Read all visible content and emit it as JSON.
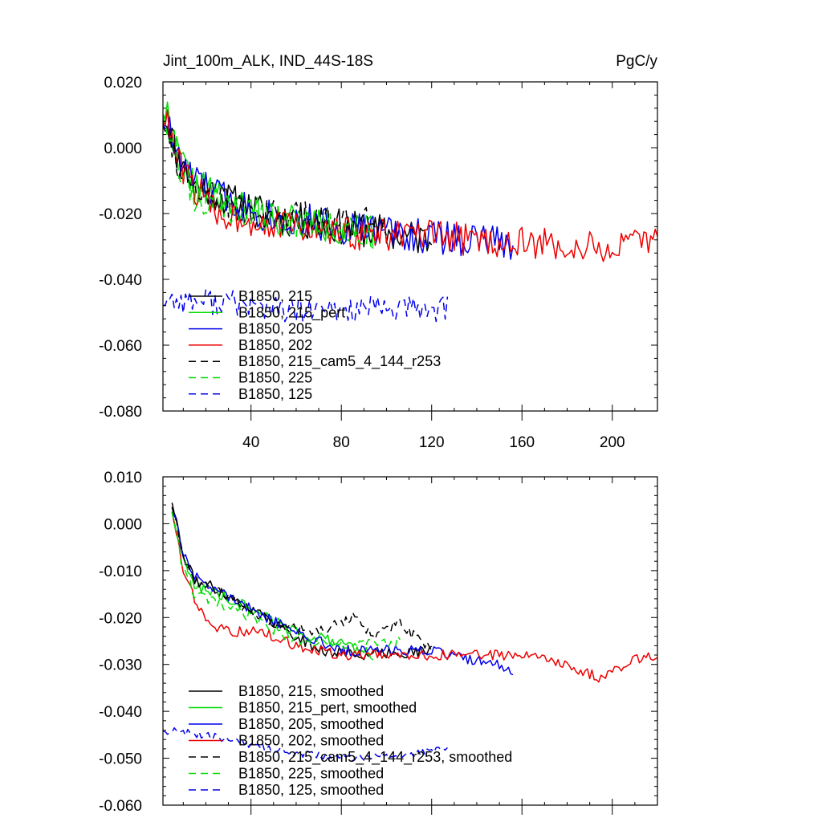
{
  "units_label": "PgC/y",
  "colors": {
    "black": "#000000",
    "green": "#00dd00",
    "blue": "#0000ee",
    "red": "#ee0000"
  },
  "chart_data": [
    {
      "type": "line",
      "title": "Jint_100m_ALK, IND_44S-18S",
      "units": "PgC/y",
      "xlim": [
        1,
        220
      ],
      "ylim": [
        -0.08,
        0.02
      ],
      "xticks": [
        40,
        80,
        120,
        160,
        200
      ],
      "xtick_labels": [
        "40",
        "80",
        "120",
        "160",
        "200"
      ],
      "yticks": [
        0.02,
        0.0,
        -0.02,
        -0.04,
        -0.06,
        -0.08
      ],
      "ytick_labels": [
        "0.020",
        "0.000",
        "-0.020",
        "-0.040",
        "-0.060",
        "-0.080"
      ],
      "show_xtick_labels": true,
      "legend": {
        "placement": "bottom-left"
      },
      "series": [
        {
          "name": "B1850, 215",
          "color": "black",
          "dash": false,
          "len": 120,
          "keys": [
            [
              1,
              0.011
            ],
            [
              4,
              0.006
            ],
            [
              8,
              -0.004
            ],
            [
              15,
              -0.011
            ],
            [
              30,
              -0.016
            ],
            [
              50,
              -0.021
            ],
            [
              80,
              -0.024
            ],
            [
              120,
              -0.028
            ]
          ],
          "noise": 0.0055,
          "seed": 11
        },
        {
          "name": "B1850, 215_pert",
          "color": "green",
          "dash": false,
          "len": 94,
          "keys": [
            [
              1,
              0.013
            ],
            [
              4,
              0.008
            ],
            [
              8,
              -0.003
            ],
            [
              15,
              -0.011
            ],
            [
              30,
              -0.017
            ],
            [
              50,
              -0.021
            ],
            [
              94,
              -0.026
            ]
          ],
          "noise": 0.0055,
          "seed": 22
        },
        {
          "name": "B1850, 205",
          "color": "blue",
          "dash": false,
          "len": 156,
          "keys": [
            [
              1,
              0.01
            ],
            [
              4,
              0.005
            ],
            [
              8,
              -0.004
            ],
            [
              15,
              -0.01
            ],
            [
              30,
              -0.016
            ],
            [
              50,
              -0.021
            ],
            [
              80,
              -0.024
            ],
            [
              120,
              -0.027
            ],
            [
              156,
              -0.029
            ]
          ],
          "noise": 0.0055,
          "seed": 33
        },
        {
          "name": "B1850, 202",
          "color": "red",
          "dash": false,
          "len": 220,
          "keys": [
            [
              1,
              0.011
            ],
            [
              4,
              0.005
            ],
            [
              8,
              -0.005
            ],
            [
              15,
              -0.012
            ],
            [
              25,
              -0.02
            ],
            [
              50,
              -0.023
            ],
            [
              80,
              -0.026
            ],
            [
              120,
              -0.027
            ],
            [
              160,
              -0.029
            ],
            [
              200,
              -0.031
            ],
            [
              220,
              -0.028
            ]
          ],
          "noise": 0.005,
          "seed": 44
        },
        {
          "name": "B1850, 215_cam5_4_144_r253",
          "color": "black",
          "dash": true,
          "len": 100,
          "keys": [
            [
              1,
              0.009
            ],
            [
              4,
              0.004
            ],
            [
              8,
              -0.005
            ],
            [
              15,
              -0.011
            ],
            [
              30,
              -0.017
            ],
            [
              50,
              -0.021
            ],
            [
              80,
              -0.022
            ],
            [
              100,
              -0.022
            ]
          ],
          "noise": 0.005,
          "seed": 55
        },
        {
          "name": "B1850, 225",
          "color": "green",
          "dash": true,
          "len": 95,
          "keys": [
            [
              1,
              0.012
            ],
            [
              4,
              0.006
            ],
            [
              8,
              -0.005
            ],
            [
              15,
              -0.015
            ],
            [
              30,
              -0.019
            ],
            [
              60,
              -0.023
            ],
            [
              95,
              -0.027
            ]
          ],
          "noise": 0.005,
          "seed": 66
        },
        {
          "name": "B1850, 125",
          "color": "blue",
          "dash": true,
          "len": 127,
          "keys": [
            [
              1,
              -0.046
            ],
            [
              30,
              -0.047
            ],
            [
              60,
              -0.05
            ],
            [
              90,
              -0.049
            ],
            [
              127,
              -0.049
            ]
          ],
          "noise": 0.004,
          "seed": 77
        }
      ]
    },
    {
      "type": "line",
      "title": "",
      "units": "",
      "xlim": [
        1,
        220
      ],
      "ylim": [
        -0.06,
        0.01
      ],
      "xticks": [
        40,
        80,
        120,
        160,
        200
      ],
      "xtick_labels": [],
      "yticks": [
        0.01,
        0.0,
        -0.01,
        -0.02,
        -0.03,
        -0.04,
        -0.05,
        -0.06
      ],
      "ytick_labels": [
        "0.010",
        "0.000",
        "-0.010",
        "-0.020",
        "-0.030",
        "-0.040",
        "-0.050",
        "-0.060"
      ],
      "show_xtick_labels": false,
      "legend": {
        "placement": "bottom-left"
      },
      "series": [
        {
          "name": "B1850, 215, smoothed",
          "color": "black",
          "dash": false,
          "len": 120,
          "keys": [
            [
              5,
              0.005
            ],
            [
              10,
              -0.007
            ],
            [
              15,
              -0.012
            ],
            [
              25,
              -0.014
            ],
            [
              40,
              -0.018
            ],
            [
              50,
              -0.021
            ],
            [
              70,
              -0.027
            ],
            [
              90,
              -0.028
            ],
            [
              120,
              -0.027
            ]
          ],
          "noise": 0.0012,
          "seed": 111
        },
        {
          "name": "B1850, 215_pert, smoothed",
          "color": "green",
          "dash": false,
          "len": 94,
          "keys": [
            [
              5,
              0.003
            ],
            [
              10,
              -0.008
            ],
            [
              15,
              -0.013
            ],
            [
              25,
              -0.015
            ],
            [
              40,
              -0.018
            ],
            [
              55,
              -0.022
            ],
            [
              75,
              -0.025
            ],
            [
              94,
              -0.028
            ]
          ],
          "noise": 0.0012,
          "seed": 122
        },
        {
          "name": "B1850, 205, smoothed",
          "color": "blue",
          "dash": false,
          "len": 156,
          "keys": [
            [
              5,
              0.004
            ],
            [
              10,
              -0.006
            ],
            [
              15,
              -0.011
            ],
            [
              25,
              -0.014
            ],
            [
              40,
              -0.018
            ],
            [
              55,
              -0.022
            ],
            [
              80,
              -0.027
            ],
            [
              120,
              -0.027
            ],
            [
              156,
              -0.031
            ]
          ],
          "noise": 0.0012,
          "seed": 133
        },
        {
          "name": "B1850, 202, smoothed",
          "color": "red",
          "dash": false,
          "len": 220,
          "keys": [
            [
              5,
              0.003
            ],
            [
              10,
              -0.01
            ],
            [
              15,
              -0.016
            ],
            [
              20,
              -0.021
            ],
            [
              30,
              -0.023
            ],
            [
              45,
              -0.023
            ],
            [
              60,
              -0.026
            ],
            [
              80,
              -0.028
            ],
            [
              120,
              -0.028
            ],
            [
              160,
              -0.028
            ],
            [
              180,
              -0.03
            ],
            [
              195,
              -0.033
            ],
            [
              210,
              -0.029
            ],
            [
              220,
              -0.028
            ]
          ],
          "noise": 0.0011,
          "seed": 144
        },
        {
          "name": "B1850, 215_cam5_4_144_r253, smoothed",
          "color": "black",
          "dash": true,
          "len": 120,
          "keys": [
            [
              5,
              0.004
            ],
            [
              10,
              -0.007
            ],
            [
              15,
              -0.012
            ],
            [
              25,
              -0.014
            ],
            [
              40,
              -0.019
            ],
            [
              55,
              -0.022
            ],
            [
              70,
              -0.023
            ],
            [
              85,
              -0.02
            ],
            [
              95,
              -0.024
            ],
            [
              105,
              -0.021
            ],
            [
              120,
              -0.027
            ]
          ],
          "noise": 0.0011,
          "seed": 155
        },
        {
          "name": "B1850, 225, smoothed",
          "color": "green",
          "dash": true,
          "len": 106,
          "keys": [
            [
              5,
              0.003
            ],
            [
              10,
              -0.01
            ],
            [
              15,
              -0.015
            ],
            [
              25,
              -0.017
            ],
            [
              40,
              -0.02
            ],
            [
              60,
              -0.025
            ],
            [
              80,
              -0.026
            ],
            [
              106,
              -0.025
            ]
          ],
          "noise": 0.0011,
          "seed": 166
        },
        {
          "name": "B1850, 125, smoothed",
          "color": "blue",
          "dash": true,
          "len": 127,
          "keys": [
            [
              1,
              -0.044
            ],
            [
              20,
              -0.045
            ],
            [
              40,
              -0.047
            ],
            [
              60,
              -0.049
            ],
            [
              90,
              -0.05
            ],
            [
              110,
              -0.049
            ],
            [
              127,
              -0.048
            ]
          ],
          "noise": 0.0008,
          "seed": 177
        }
      ]
    }
  ]
}
